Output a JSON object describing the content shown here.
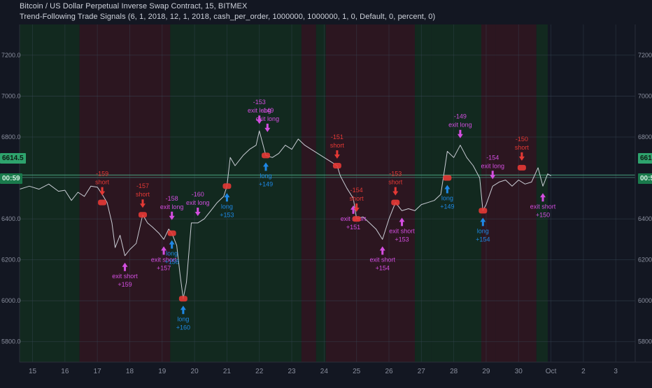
{
  "header": {
    "title": "Bitcoin / US Dollar Perpetual Inverse Swap Contract, 15, BITMEX",
    "study": "Trend-Following Trade Signals (6, 1, 2018, 12, 1, 2018, cash_per_order, 1000000, 1000000, 1, 0, Default, 0, percent, 0)"
  },
  "badges": {
    "price": "6614.5",
    "time": "00:59"
  },
  "colors": {
    "background": "#131722",
    "bull_region": "#12291f",
    "bear_region": "#2c1620",
    "price_line": "#c9ccd4",
    "signal_long": "#1e88e5",
    "signal_short": "#e53935",
    "signal_exit": "#d34ee0",
    "axis_text": "#8a8f9e"
  },
  "chart_data": {
    "type": "line",
    "title": "",
    "xlabel": "",
    "ylabel": "",
    "ylim": [
      5700,
      7350
    ],
    "xlim": [
      14.6,
      3.6
    ],
    "x_ticks": [
      "15",
      "16",
      "17",
      "18",
      "19",
      "20",
      "21",
      "22",
      "23",
      "24",
      "25",
      "26",
      "27",
      "28",
      "29",
      "30",
      "Oct",
      "2",
      "3"
    ],
    "y_ticks": [
      "7200.0",
      "7000.0",
      "6800.0",
      "6600.0",
      "6400.0",
      "6200.0",
      "6000.0",
      "5800.0"
    ],
    "y_tick_values": [
      7200,
      7000,
      6800,
      6600,
      6400,
      6200,
      6000,
      5800
    ],
    "regions": [
      {
        "trend": "bull",
        "from": 14.6,
        "to": 16.45
      },
      {
        "trend": "bear",
        "from": 16.45,
        "to": 19.25
      },
      {
        "trend": "bull",
        "from": 19.25,
        "to": 23.3
      },
      {
        "trend": "bear",
        "from": 23.3,
        "to": 23.75
      },
      {
        "trend": "bull",
        "from": 23.75,
        "to": 24.05
      },
      {
        "trend": "bear",
        "from": 24.05,
        "to": 26.8
      },
      {
        "trend": "bull",
        "from": 26.8,
        "to": 27.3
      },
      {
        "trend": "bull",
        "from": 27.3,
        "to": 28.85
      },
      {
        "trend": "bear",
        "from": 28.85,
        "to": 29.3
      },
      {
        "trend": "bear",
        "from": 29.3,
        "to": 30.55
      },
      {
        "trend": "bull",
        "from": 30.55,
        "to": 30.9
      }
    ],
    "series": [
      {
        "points": [
          [
            14.6,
            6545
          ],
          [
            14.9,
            6560
          ],
          [
            15.2,
            6545
          ],
          [
            15.5,
            6570
          ],
          [
            15.8,
            6535
          ],
          [
            16.0,
            6540
          ],
          [
            16.2,
            6490
          ],
          [
            16.4,
            6530
          ],
          [
            16.6,
            6510
          ],
          [
            16.8,
            6560
          ],
          [
            17.0,
            6555
          ],
          [
            17.15,
            6520
          ],
          [
            17.3,
            6480
          ],
          [
            17.45,
            6380
          ],
          [
            17.55,
            6260
          ],
          [
            17.7,
            6320
          ],
          [
            17.85,
            6220
          ],
          [
            18.0,
            6250
          ],
          [
            18.2,
            6280
          ],
          [
            18.4,
            6420
          ],
          [
            18.55,
            6380
          ],
          [
            18.7,
            6360
          ],
          [
            18.9,
            6330
          ],
          [
            19.05,
            6300
          ],
          [
            19.2,
            6350
          ],
          [
            19.3,
            6330
          ],
          [
            19.45,
            6270
          ],
          [
            19.55,
            6130
          ],
          [
            19.65,
            6010
          ],
          [
            19.75,
            6090
          ],
          [
            19.9,
            6380
          ],
          [
            20.1,
            6380
          ],
          [
            20.3,
            6400
          ],
          [
            20.5,
            6440
          ],
          [
            20.7,
            6480
          ],
          [
            20.9,
            6510
          ],
          [
            21.0,
            6560
          ],
          [
            21.1,
            6700
          ],
          [
            21.25,
            6660
          ],
          [
            21.5,
            6710
          ],
          [
            21.7,
            6740
          ],
          [
            21.9,
            6760
          ],
          [
            22.0,
            6830
          ],
          [
            22.2,
            6710
          ],
          [
            22.4,
            6700
          ],
          [
            22.6,
            6720
          ],
          [
            22.8,
            6760
          ],
          [
            23.0,
            6740
          ],
          [
            23.2,
            6790
          ],
          [
            23.4,
            6760
          ],
          [
            23.6,
            6740
          ],
          [
            23.8,
            6720
          ],
          [
            24.0,
            6700
          ],
          [
            24.2,
            6680
          ],
          [
            24.4,
            6660
          ],
          [
            24.5,
            6610
          ],
          [
            24.7,
            6550
          ],
          [
            24.9,
            6500
          ],
          [
            25.0,
            6400
          ],
          [
            25.2,
            6410
          ],
          [
            25.4,
            6380
          ],
          [
            25.6,
            6350
          ],
          [
            25.8,
            6300
          ],
          [
            26.0,
            6400
          ],
          [
            26.2,
            6480
          ],
          [
            26.4,
            6440
          ],
          [
            26.6,
            6450
          ],
          [
            26.8,
            6440
          ],
          [
            27.0,
            6470
          ],
          [
            27.2,
            6480
          ],
          [
            27.4,
            6490
          ],
          [
            27.6,
            6520
          ],
          [
            27.8,
            6730
          ],
          [
            28.0,
            6700
          ],
          [
            28.2,
            6760
          ],
          [
            28.4,
            6700
          ],
          [
            28.6,
            6660
          ],
          [
            28.8,
            6600
          ],
          [
            28.9,
            6440
          ],
          [
            29.0,
            6470
          ],
          [
            29.2,
            6560
          ],
          [
            29.4,
            6580
          ],
          [
            29.6,
            6590
          ],
          [
            29.8,
            6560
          ],
          [
            30.0,
            6590
          ],
          [
            30.2,
            6570
          ],
          [
            30.4,
            6580
          ],
          [
            30.6,
            6650
          ],
          [
            30.75,
            6560
          ],
          [
            30.9,
            6620
          ],
          [
            31.0,
            6610
          ]
        ]
      }
    ],
    "signals": [
      {
        "x": 17.15,
        "y": 6480,
        "kind": "short",
        "labels": [
          "-159",
          "short"
        ]
      },
      {
        "x": 17.85,
        "y": 6220,
        "kind": "exit_short",
        "labels": [
          "exit short",
          "+159"
        ]
      },
      {
        "x": 18.4,
        "y": 6420,
        "kind": "short",
        "labels": [
          "-157",
          "short"
        ]
      },
      {
        "x": 19.05,
        "y": 6300,
        "kind": "exit_short",
        "labels": [
          "exit short",
          "+157"
        ]
      },
      {
        "x": 19.3,
        "y": 6330,
        "kind": "long",
        "labels": [
          "long",
          "+158"
        ]
      },
      {
        "x": 19.3,
        "y": 6360,
        "kind": "exit_long",
        "labels": [
          "-158",
          "exit long"
        ]
      },
      {
        "x": 19.65,
        "y": 6010,
        "kind": "long",
        "labels": [
          "long",
          "+160"
        ]
      },
      {
        "x": 20.1,
        "y": 6380,
        "kind": "exit_long",
        "labels": [
          "-160",
          "exit long"
        ]
      },
      {
        "x": 21.0,
        "y": 6560,
        "kind": "long",
        "labels": [
          "long",
          "+153"
        ]
      },
      {
        "x": 22.0,
        "y": 6830,
        "kind": "exit_long",
        "labels": [
          "-153",
          "exit long"
        ]
      },
      {
        "x": 22.2,
        "y": 6710,
        "kind": "long",
        "labels": [
          "long",
          "+149"
        ]
      },
      {
        "x": 22.25,
        "y": 6790,
        "kind": "exit_long",
        "labels": [
          "-149",
          "exit long"
        ]
      },
      {
        "x": 24.4,
        "y": 6660,
        "kind": "short",
        "labels": [
          "-151",
          "short"
        ]
      },
      {
        "x": 24.9,
        "y": 6500,
        "kind": "exit_short",
        "labels": [
          "exit short",
          "+151"
        ]
      },
      {
        "x": 25.0,
        "y": 6400,
        "kind": "short",
        "labels": [
          "-154",
          "short"
        ]
      },
      {
        "x": 25.8,
        "y": 6300,
        "kind": "exit_short",
        "labels": [
          "exit short",
          "+154"
        ]
      },
      {
        "x": 26.2,
        "y": 6480,
        "kind": "short",
        "labels": [
          "-153",
          "short"
        ]
      },
      {
        "x": 26.4,
        "y": 6440,
        "kind": "exit_short",
        "labels": [
          "exit short",
          "+153"
        ]
      },
      {
        "x": 27.8,
        "y": 6600,
        "kind": "long",
        "labels": [
          "long",
          "+149"
        ]
      },
      {
        "x": 28.2,
        "y": 6760,
        "kind": "exit_long",
        "labels": [
          "-149",
          "exit long"
        ]
      },
      {
        "x": 28.9,
        "y": 6440,
        "kind": "long",
        "labels": [
          "long",
          "+154"
        ]
      },
      {
        "x": 29.2,
        "y": 6560,
        "kind": "exit_long",
        "labels": [
          "-154",
          "exit long"
        ]
      },
      {
        "x": 30.1,
        "y": 6650,
        "kind": "short",
        "labels": [
          "-150",
          "short"
        ]
      },
      {
        "x": 30.75,
        "y": 6560,
        "kind": "exit_short",
        "labels": [
          "exit short",
          "+150"
        ]
      }
    ],
    "grid": true,
    "legend": "none"
  }
}
